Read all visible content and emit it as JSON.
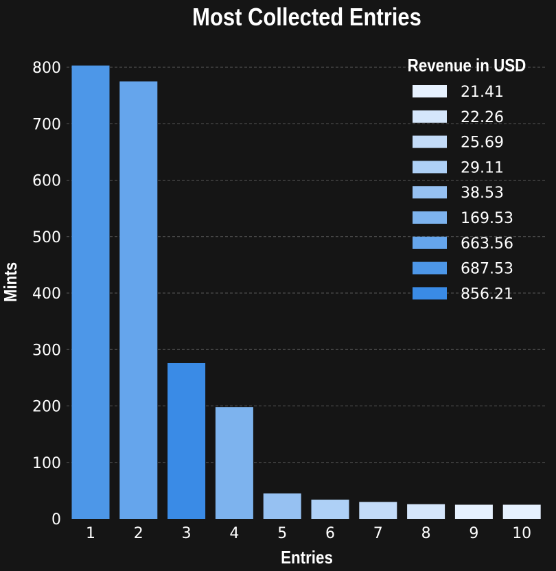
{
  "chart_data": {
    "type": "bar",
    "title": "Most Collected Entries",
    "xlabel": "Entries",
    "ylabel": "Mints",
    "ylim": [
      0,
      820
    ],
    "yticks": [
      0,
      100,
      200,
      300,
      400,
      500,
      600,
      700,
      800
    ],
    "grid": true,
    "categories": [
      "1",
      "2",
      "3",
      "4",
      "5",
      "6",
      "7",
      "8",
      "9",
      "10"
    ],
    "values": [
      803,
      775,
      276,
      198,
      45,
      34,
      30,
      26,
      25,
      25
    ],
    "revenue": [
      687.53,
      663.56,
      856.21,
      169.53,
      38.53,
      29.11,
      25.69,
      22.26,
      21.41,
      21.41
    ],
    "legend": {
      "title": "Revenue in USD",
      "placement": "top-right",
      "entries": [
        {
          "label": "21.41",
          "color": "#e6f1fe"
        },
        {
          "label": "22.26",
          "color": "#d5e6fb"
        },
        {
          "label": "25.69",
          "color": "#c3dbf8"
        },
        {
          "label": "29.11",
          "color": "#aed0f6"
        },
        {
          "label": "38.53",
          "color": "#96c1f2"
        },
        {
          "label": "169.53",
          "color": "#7db3ee"
        },
        {
          "label": "663.56",
          "color": "#65a5ec"
        },
        {
          "label": "687.53",
          "color": "#4d97e8"
        },
        {
          "label": "856.21",
          "color": "#3a8be6"
        }
      ]
    }
  }
}
